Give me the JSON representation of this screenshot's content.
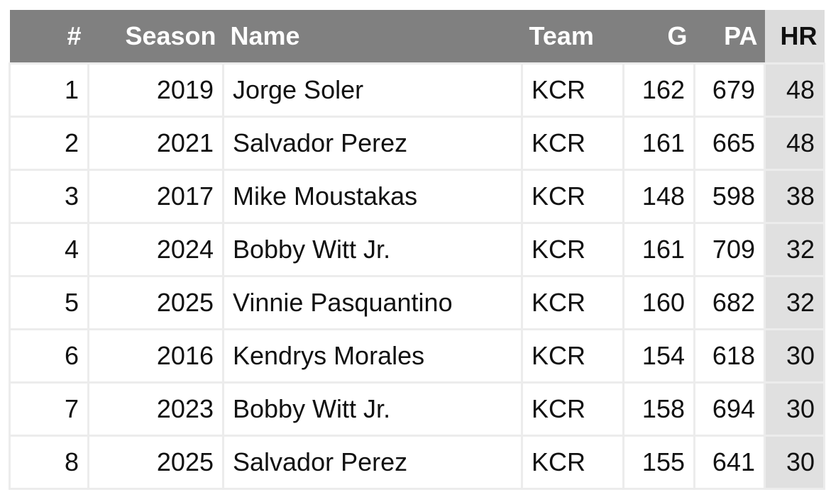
{
  "table": {
    "header": [
      "#",
      "Season",
      "Name",
      "Team",
      "G",
      "PA",
      "HR"
    ],
    "rows": [
      [
        1,
        2019,
        "Jorge Soler",
        "KCR",
        162,
        679,
        48
      ],
      [
        2,
        2021,
        "Salvador Perez",
        "KCR",
        161,
        665,
        48
      ],
      [
        3,
        2017,
        "Mike Moustakas",
        "KCR",
        148,
        598,
        38
      ],
      [
        4,
        2024,
        "Bobby Witt Jr.",
        "KCR",
        161,
        709,
        32
      ],
      [
        5,
        2025,
        "Vinnie Pasquantino",
        "KCR",
        160,
        682,
        32
      ],
      [
        6,
        2016,
        "Kendrys Morales",
        "KCR",
        154,
        618,
        30
      ],
      [
        7,
        2023,
        "Bobby Witt Jr.",
        "KCR",
        158,
        694,
        30
      ],
      [
        8,
        2025,
        "Salvador Perez",
        "KCR",
        155,
        641,
        30
      ]
    ]
  }
}
